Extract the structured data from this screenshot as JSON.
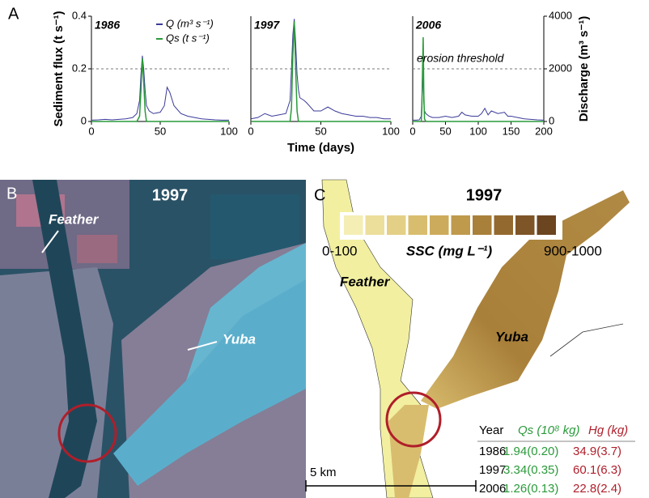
{
  "chart_data": [
    {
      "type": "line",
      "title": "1986",
      "ylabel": "Sediment flux (t s⁻¹)",
      "legend": "upper right",
      "xlim": [
        0,
        100
      ],
      "xticks": [
        0,
        50,
        100
      ],
      "ylim": [
        0,
        0.4
      ],
      "yticks": [
        0,
        0.2,
        0.4
      ],
      "y2lim": [
        0,
        4000
      ],
      "threshold": 0.2,
      "x": [
        0,
        5,
        10,
        15,
        20,
        25,
        30,
        33,
        35,
        36,
        37,
        38,
        39,
        40,
        42,
        45,
        50,
        53,
        55,
        57,
        60,
        65,
        70,
        75,
        80,
        85,
        90,
        95,
        100
      ],
      "series": [
        {
          "name": "Q (m³ s⁻¹)",
          "color": "#3b3b9a",
          "axis": "y2",
          "values": [
            50,
            60,
            80,
            60,
            80,
            100,
            150,
            300,
            800,
            1800,
            2500,
            2000,
            1200,
            600,
            400,
            300,
            350,
            600,
            1300,
            1100,
            600,
            300,
            200,
            150,
            100,
            80,
            60,
            50,
            50
          ]
        },
        {
          "name": "Qs (t s⁻¹)",
          "color": "#2a9a3a",
          "values": [
            0,
            0,
            0,
            0,
            0,
            0,
            0,
            0,
            0.02,
            0.12,
            0.24,
            0.15,
            0.04,
            0,
            0,
            0,
            0,
            0,
            0,
            0,
            0,
            0,
            0,
            0,
            0,
            0,
            0,
            0,
            0
          ]
        }
      ]
    },
    {
      "type": "line",
      "title": "1997",
      "xlabel": "Time (days)",
      "xlim": [
        0,
        100
      ],
      "xticks": [
        0,
        50,
        100
      ],
      "ylim": [
        0,
        0.4
      ],
      "y2lim": [
        0,
        4000
      ],
      "threshold": 0.2,
      "x": [
        0,
        5,
        10,
        15,
        20,
        25,
        28,
        29,
        30,
        31,
        32,
        33,
        34,
        35,
        38,
        40,
        45,
        50,
        55,
        60,
        65,
        70,
        75,
        80,
        85,
        90,
        95,
        100
      ],
      "series": [
        {
          "name": "Q (m³ s⁻¹)",
          "color": "#3b3b9a",
          "axis": "y2",
          "values": [
            100,
            150,
            300,
            200,
            250,
            300,
            800,
            2000,
            3300,
            3900,
            3000,
            1800,
            1200,
            900,
            800,
            700,
            400,
            400,
            550,
            400,
            300,
            250,
            200,
            200,
            150,
            150,
            100,
            100
          ]
        },
        {
          "name": "Qs (t s⁻¹)",
          "color": "#2a9a3a",
          "values": [
            0,
            0,
            0,
            0,
            0,
            0,
            0,
            0.05,
            0.25,
            0.38,
            0.2,
            0.04,
            0,
            0,
            0,
            0,
            0,
            0,
            0,
            0,
            0,
            0,
            0,
            0,
            0,
            0,
            0,
            0
          ]
        }
      ]
    },
    {
      "type": "line",
      "title": "2006",
      "y2label": "Discharge (m³ s⁻¹)",
      "threshold_label": "erosion threshold",
      "xlim": [
        0,
        200
      ],
      "xticks": [
        0,
        50,
        100,
        150,
        200
      ],
      "ylim": [
        0,
        0.4
      ],
      "y2lim": [
        0,
        4000
      ],
      "y2ticks": [
        0,
        2000,
        4000
      ],
      "threshold": 0.2,
      "x": [
        0,
        5,
        10,
        13,
        14,
        15,
        16,
        17,
        18,
        20,
        25,
        30,
        40,
        50,
        60,
        70,
        75,
        80,
        90,
        100,
        105,
        110,
        115,
        120,
        130,
        140,
        145,
        150,
        160,
        170,
        180,
        190,
        200
      ],
      "series": [
        {
          "name": "Q (m³ s⁻¹)",
          "color": "#3b3b9a",
          "axis": "y2",
          "values": [
            50,
            50,
            60,
            200,
            900,
            1800,
            1400,
            700,
            400,
            300,
            200,
            150,
            150,
            200,
            150,
            200,
            350,
            250,
            200,
            200,
            300,
            500,
            250,
            400,
            300,
            350,
            200,
            200,
            150,
            100,
            80,
            60,
            50
          ]
        },
        {
          "name": "Qs (t s⁻¹)",
          "color": "#2a9a3a",
          "values": [
            0,
            0,
            0,
            0,
            0.05,
            0.2,
            0.32,
            0.1,
            0.01,
            0,
            0,
            0,
            0,
            0,
            0,
            0,
            0,
            0,
            0,
            0,
            0,
            0,
            0,
            0,
            0,
            0,
            0,
            0,
            0,
            0,
            0,
            0,
            0
          ]
        }
      ]
    }
  ],
  "panel_labels": [
    "A",
    "B",
    "C"
  ],
  "panel_b": {
    "title": "1997",
    "labels": [
      "Feather",
      "Yuba"
    ]
  },
  "panel_c": {
    "title": "1997",
    "legend": {
      "colors": [
        "#f4eeb4",
        "#ecdf9c",
        "#e4cf86",
        "#d9bd6e",
        "#cdab5c",
        "#bf9a4c",
        "#a9803a",
        "#94692f",
        "#7e5526",
        "#6b4420"
      ],
      "min_label": "0-100",
      "title": "SSC (mg L⁻¹)",
      "max_label": "900-1000"
    },
    "labels": [
      "Feather",
      "Yuba"
    ],
    "table": {
      "header": [
        "Year",
        "Qs (10⁸ kg)",
        "Hg (kg)"
      ],
      "rows": [
        [
          "1986",
          "1.94(0.20)",
          "34.9(3.7)"
        ],
        [
          "1997",
          "3.34(0.35)",
          "60.1(6.3)"
        ],
        [
          "2006",
          "1.26(0.13)",
          "22.8(2.4)"
        ]
      ]
    },
    "scale_bar": "5 km"
  }
}
